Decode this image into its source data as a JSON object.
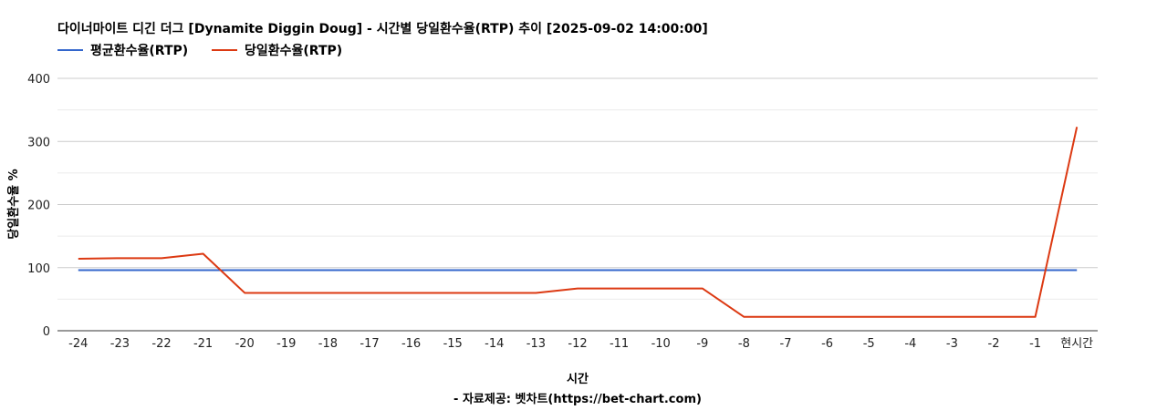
{
  "chart_data": {
    "type": "line",
    "title": "다이너마이트 디긴 더그 [Dynamite Diggin Doug] - 시간별 당일환수율(RTP) 추이 [2025-09-02 14:00:00]",
    "xlabel": "시간",
    "ylabel": "당일환수율 %",
    "source": "- 자료제공: 벳차트(https://bet-chart.com)",
    "legend_position": "top-left",
    "ylim": [
      0,
      400
    ],
    "yticks": [
      "0",
      "100",
      "200",
      "300",
      "400"
    ],
    "grid": true,
    "categories": [
      "-24",
      "-23",
      "-22",
      "-21",
      "-20",
      "-19",
      "-18",
      "-17",
      "-16",
      "-15",
      "-14",
      "-13",
      "-12",
      "-11",
      "-10",
      "-9",
      "-8",
      "-7",
      "-6",
      "-5",
      "-4",
      "-3",
      "-2",
      "-1",
      "현시간"
    ],
    "series": [
      {
        "name": "평균환수율(RTP)",
        "color": "#3366cc",
        "values": [
          96,
          96,
          96,
          96,
          96,
          96,
          96,
          96,
          96,
          96,
          96,
          96,
          96,
          96,
          96,
          96,
          96,
          96,
          96,
          96,
          96,
          96,
          96,
          96,
          96
        ]
      },
      {
        "name": "당일환수율(RTP)",
        "color": "#dc3912",
        "values": [
          114,
          115,
          115,
          122,
          60,
          60,
          60,
          60,
          60,
          60,
          60,
          60,
          67,
          67,
          67,
          67,
          22,
          22,
          22,
          22,
          22,
          22,
          22,
          22,
          323
        ]
      }
    ]
  }
}
